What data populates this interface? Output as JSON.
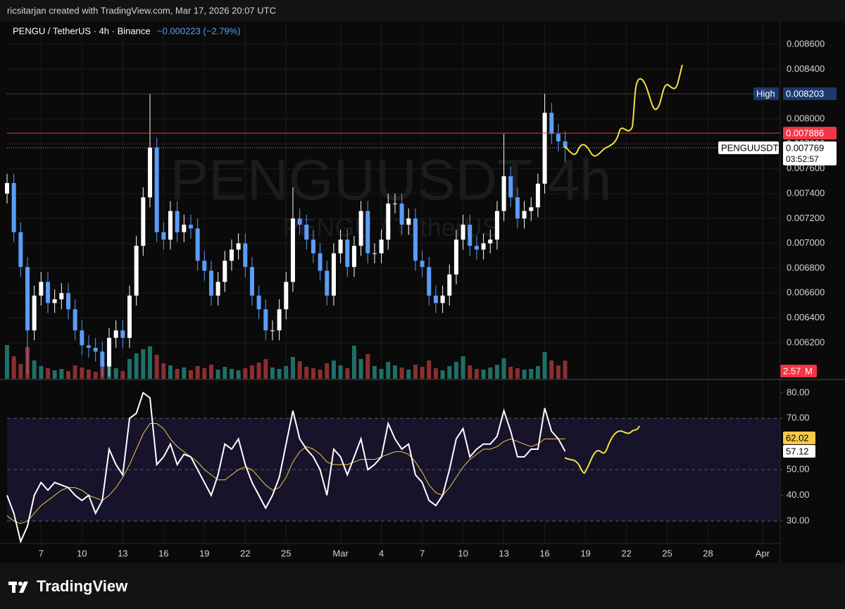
{
  "header": {
    "attribution": "ricsitarjan created with TradingView.com, Mar 17, 2026 20:07 UTC",
    "symbol_line": "PENGU / TetherUS · 4h · Binance",
    "change": "−0.000223 (−2.79%)"
  },
  "watermark": {
    "ticker": "PENGUUSDT 4h",
    "name": "PENGU / TetherUS"
  },
  "chart_data": [
    {
      "type": "candlestick",
      "x": [
        4.5,
        5,
        5.5,
        6,
        6.5,
        7,
        7.5,
        8,
        8.5,
        9,
        9.5,
        10,
        10.5,
        11,
        11.5,
        12,
        12.5,
        13,
        13.5,
        14,
        14.5,
        15,
        15.5,
        16,
        16.5,
        17,
        17.5,
        18,
        18.5,
        19,
        19.5,
        20,
        20.5,
        21,
        21.5,
        22,
        22.5,
        23,
        23.5,
        24,
        24.5,
        25,
        25.5,
        26,
        26.5,
        27,
        27.5,
        28,
        28.5,
        29,
        29.5,
        30,
        30.5,
        31,
        31.5,
        32,
        32.5,
        33,
        33.5,
        34,
        34.5,
        35,
        35.5,
        36,
        36.5,
        37,
        37.5,
        38,
        38.5,
        39,
        39.5,
        40,
        40.5,
        41,
        41.5,
        42,
        42.5,
        43,
        43.5,
        44,
        44.5,
        45,
        45.5
      ],
      "xlim": [
        4.5,
        61.3
      ],
      "xticks": [
        7,
        10,
        13,
        16,
        19,
        22,
        25,
        {
          "value": 29,
          "label": "Mar"
        },
        {
          "value": 32,
          "label": "4"
        },
        {
          "value": 35,
          "label": "7"
        },
        {
          "value": 38,
          "label": "10"
        },
        {
          "value": 41,
          "label": "13"
        },
        {
          "value": 44,
          "label": "16"
        },
        {
          "value": 47,
          "label": "19"
        },
        {
          "value": 50,
          "label": "22"
        },
        {
          "value": 53,
          "label": "25"
        },
        {
          "value": 56,
          "label": "28"
        },
        {
          "value": 60,
          "label": "Apr"
        }
      ],
      "ylim": [
        0.005911,
        0.008787
      ],
      "yticks": [
        {
          "value": 0.0062,
          "label": "0.006200"
        },
        {
          "value": 0.0064,
          "label": "0.006400"
        },
        {
          "value": 0.0066,
          "label": "0.006600"
        },
        {
          "value": 0.0068,
          "label": "0.006800"
        },
        {
          "value": 0.007,
          "label": "0.007000"
        },
        {
          "value": 0.0072,
          "label": "0.007200"
        },
        {
          "value": 0.0074,
          "label": "0.007400"
        },
        {
          "value": 0.0076,
          "label": "0.007600"
        },
        {
          "value": 0.0078,
          "label": "0.007800"
        },
        {
          "value": 0.008,
          "label": "0.008000"
        },
        {
          "value": 0.0082,
          "label": "0.008200"
        },
        {
          "value": 0.0084,
          "label": "0.008400"
        },
        {
          "value": 0.0086,
          "label": "0.008600"
        }
      ],
      "series": [
        {
          "up_color": "#ffffff",
          "down_color": "#5b9cf6",
          "open": [
            0.0074,
            0.007485,
            0.00709,
            0.00681,
            0.0063,
            0.00658,
            0.00669,
            0.00652,
            0.00655,
            0.0066,
            0.00647,
            0.0063,
            0.00618,
            0.00616,
            0.00613,
            0.00601,
            0.00624,
            0.0063,
            0.00624,
            0.00658,
            0.00698,
            0.00737,
            0.00777,
            0.00709,
            0.00703,
            0.00726,
            0.00709,
            0.00715,
            0.00712,
            0.00686,
            0.00678,
            0.00658,
            0.00669,
            0.00686,
            0.00695,
            0.007,
            0.00681,
            0.00658,
            0.00647,
            0.0063,
            0.0063,
            0.00647,
            0.00669,
            0.0072,
            0.00715,
            0.00703,
            0.00692,
            0.00678,
            0.00658,
            0.00692,
            0.00703,
            0.00681,
            0.00698,
            0.00726,
            0.00692,
            0.00692,
            0.00703,
            0.00732,
            0.00732,
            0.00715,
            0.0072,
            0.00686,
            0.00681,
            0.00658,
            0.00652,
            0.00658,
            0.00675,
            0.00703,
            0.00715,
            0.00698,
            0.00695,
            0.007,
            0.00703,
            0.00726,
            0.00754,
            0.00737,
            0.0072,
            0.00726,
            0.00729,
            0.00748,
            0.00805,
            0.00788,
            0.00782
          ],
          "high": [
            0.00756,
            0.00756,
            0.00717,
            0.00689,
            0.00666,
            0.00677,
            0.00677,
            0.00663,
            0.00668,
            0.00668,
            0.00655,
            0.00638,
            0.00626,
            0.00624,
            0.00621,
            0.00632,
            0.00638,
            0.00638,
            0.00666,
            0.00706,
            0.00745,
            0.0082,
            0.00785,
            0.00717,
            0.00734,
            0.00734,
            0.00723,
            0.00723,
            0.0072,
            0.00694,
            0.00686,
            0.00677,
            0.00694,
            0.00703,
            0.00708,
            0.00708,
            0.00689,
            0.00666,
            0.00655,
            0.00638,
            0.00655,
            0.00677,
            0.00745,
            0.00728,
            0.00723,
            0.00711,
            0.007,
            0.00686,
            0.007,
            0.00711,
            0.00711,
            0.00706,
            0.00734,
            0.00734,
            0.007,
            0.00711,
            0.0074,
            0.0074,
            0.0074,
            0.00728,
            0.00728,
            0.00694,
            0.00689,
            0.00666,
            0.00666,
            0.00683,
            0.00711,
            0.00723,
            0.00723,
            0.00706,
            0.00708,
            0.00711,
            0.00734,
            0.00788,
            0.00762,
            0.00745,
            0.00734,
            0.00737,
            0.00756,
            0.008203,
            0.00813,
            0.00796,
            0.0079
          ],
          "low": [
            0.00732,
            0.00701,
            0.00673,
            0.00595,
            0.00622,
            0.0065,
            0.00644,
            0.00644,
            0.00647,
            0.00639,
            0.00622,
            0.0061,
            0.00608,
            0.00605,
            0.00593,
            0.00593,
            0.00616,
            0.00616,
            0.00616,
            0.0065,
            0.0069,
            0.00729,
            0.00701,
            0.00695,
            0.00695,
            0.00701,
            0.00701,
            0.00704,
            0.00678,
            0.0067,
            0.0065,
            0.0065,
            0.00661,
            0.00678,
            0.00687,
            0.00673,
            0.0065,
            0.00639,
            0.00622,
            0.00622,
            0.00622,
            0.00639,
            0.00661,
            0.00707,
            0.00695,
            0.00684,
            0.0067,
            0.0065,
            0.0065,
            0.00684,
            0.00673,
            0.00673,
            0.0069,
            0.00684,
            0.00684,
            0.00684,
            0.00695,
            0.00724,
            0.00707,
            0.00707,
            0.00678,
            0.00673,
            0.0065,
            0.00644,
            0.00644,
            0.0065,
            0.00667,
            0.00695,
            0.0069,
            0.00687,
            0.00687,
            0.00692,
            0.00695,
            0.00718,
            0.00729,
            0.00712,
            0.00712,
            0.00718,
            0.00721,
            0.0074,
            0.0078,
            0.00774,
            0.00765
          ],
          "close": [
            0.007485,
            0.00709,
            0.00681,
            0.0063,
            0.00658,
            0.00669,
            0.00652,
            0.00655,
            0.0066,
            0.00647,
            0.0063,
            0.00618,
            0.00616,
            0.00613,
            0.00601,
            0.00624,
            0.0063,
            0.00624,
            0.00658,
            0.00698,
            0.00737,
            0.00777,
            0.00709,
            0.00703,
            0.00726,
            0.00709,
            0.00715,
            0.00712,
            0.00686,
            0.00678,
            0.00658,
            0.00669,
            0.00686,
            0.00695,
            0.007,
            0.00681,
            0.00658,
            0.00647,
            0.0063,
            0.0063,
            0.00647,
            0.00669,
            0.0072,
            0.00715,
            0.00703,
            0.00692,
            0.00678,
            0.00658,
            0.00692,
            0.00703,
            0.00681,
            0.00698,
            0.00726,
            0.00692,
            0.00692,
            0.00703,
            0.00732,
            0.00732,
            0.00715,
            0.0072,
            0.00686,
            0.00681,
            0.00658,
            0.00652,
            0.00658,
            0.00675,
            0.00703,
            0.00715,
            0.00698,
            0.00695,
            0.007,
            0.00703,
            0.00726,
            0.00754,
            0.00737,
            0.0072,
            0.00726,
            0.00729,
            0.00748,
            0.00805,
            0.00788,
            0.00782,
            0.007769
          ]
        }
      ],
      "volume": {
        "up_color": "#1f6f66",
        "down_color": "#8a2f2f",
        "label": "2.57",
        "values": [
          4.8,
          3.2,
          2.1,
          4.5,
          2.6,
          1.8,
          1.5,
          1.2,
          1.4,
          1.1,
          1.9,
          1.6,
          1.3,
          1.0,
          2.2,
          1.8,
          1.5,
          1.1,
          2.8,
          3.6,
          4.2,
          4.6,
          3.4,
          2.2,
          1.9,
          1.4,
          1.6,
          1.2,
          1.8,
          1.5,
          2.0,
          1.3,
          1.7,
          1.4,
          1.2,
          1.5,
          1.9,
          2.3,
          2.8,
          1.6,
          1.4,
          1.8,
          3.1,
          2.5,
          1.7,
          1.5,
          1.3,
          2.2,
          2.6,
          1.9,
          1.5,
          4.7,
          2.8,
          3.5,
          1.8,
          1.4,
          2.4,
          1.9,
          1.6,
          1.3,
          2.0,
          1.7,
          2.6,
          1.5,
          1.2,
          1.8,
          2.4,
          3.2,
          1.9,
          1.4,
          1.3,
          1.6,
          2.0,
          2.9,
          1.7,
          1.5,
          1.3,
          1.4,
          1.8,
          3.8,
          2.6,
          1.9,
          2.57
        ]
      },
      "volume_unit": "M",
      "high_marker": {
        "label": "High",
        "value": 0.008203
      },
      "alert_line": {
        "value": 0.007886,
        "color": "#f23645"
      },
      "last_price": {
        "symbol": "PENGUUSDT",
        "value": 0.007769,
        "countdown": "03:52:57"
      }
    },
    {
      "type": "line",
      "x": [
        4.5,
        5,
        5.5,
        6,
        6.5,
        7,
        7.5,
        8,
        8.5,
        9,
        9.5,
        10,
        10.5,
        11,
        11.5,
        12,
        12.5,
        13,
        13.5,
        14,
        14.5,
        15,
        15.5,
        16,
        16.5,
        17,
        17.5,
        18,
        18.5,
        19,
        19.5,
        20,
        20.5,
        21,
        21.5,
        22,
        22.5,
        23,
        23.5,
        24,
        24.5,
        25,
        25.5,
        26,
        26.5,
        27,
        27.5,
        28,
        28.5,
        29,
        29.5,
        30,
        30.5,
        31,
        31.5,
        32,
        32.5,
        33,
        33.5,
        34,
        34.5,
        35,
        35.5,
        36,
        36.5,
        37,
        37.5,
        38,
        38.5,
        39,
        39.5,
        40,
        40.5,
        41,
        41.5,
        42,
        42.5,
        43,
        43.5,
        44,
        44.5,
        45,
        45.5
      ],
      "xlim": [
        4.5,
        61.3
      ],
      "ylim": [
        21.2,
        84.9
      ],
      "yticks": [
        {
          "value": 30,
          "label": "30.00"
        },
        {
          "value": 40,
          "label": "40.00"
        },
        {
          "value": 50,
          "label": "50.00"
        },
        {
          "value": 70,
          "label": "70.00"
        },
        {
          "value": 80,
          "label": "80.00"
        }
      ],
      "band": [
        30,
        70
      ],
      "midline": 50,
      "series": [
        {
          "color": "#ffffff",
          "values": [
            40,
            33,
            22,
            28,
            40,
            45,
            42,
            45,
            44,
            43,
            40,
            38,
            40,
            33,
            38,
            58,
            52,
            48,
            70,
            72,
            80,
            78,
            52,
            55,
            60,
            52,
            56,
            55,
            50,
            45,
            40,
            48,
            60,
            58,
            62,
            52,
            45,
            40,
            35,
            40,
            47,
            60,
            73,
            62,
            58,
            55,
            50,
            40,
            58,
            55,
            48,
            55,
            62,
            50,
            52,
            55,
            68,
            62,
            58,
            60,
            48,
            45,
            38,
            36,
            40,
            50,
            62,
            66,
            55,
            58,
            60,
            60,
            63,
            73,
            65,
            55,
            55,
            58,
            58,
            74,
            65,
            62,
            57.12
          ]
        },
        {
          "color": "#f7c948",
          "values": [
            32,
            30,
            29,
            30,
            33,
            36,
            38,
            40,
            42,
            43,
            43,
            42,
            40,
            39,
            38,
            40,
            43,
            47,
            52,
            58,
            64,
            68,
            68,
            66,
            62,
            59,
            57,
            55,
            53,
            50,
            48,
            46,
            46,
            48,
            50,
            51,
            50,
            47,
            44,
            42,
            43,
            47,
            53,
            57,
            59,
            58,
            56,
            53,
            52,
            52,
            52,
            53,
            54,
            54,
            54,
            55,
            56,
            57,
            57,
            56,
            53,
            49,
            44,
            41,
            40,
            43,
            47,
            51,
            54,
            56,
            58,
            58,
            59,
            61,
            62,
            61,
            60,
            59,
            60,
            62,
            62,
            62,
            62.02
          ]
        }
      ]
    }
  ],
  "footer": {
    "brand": "TradingView"
  }
}
